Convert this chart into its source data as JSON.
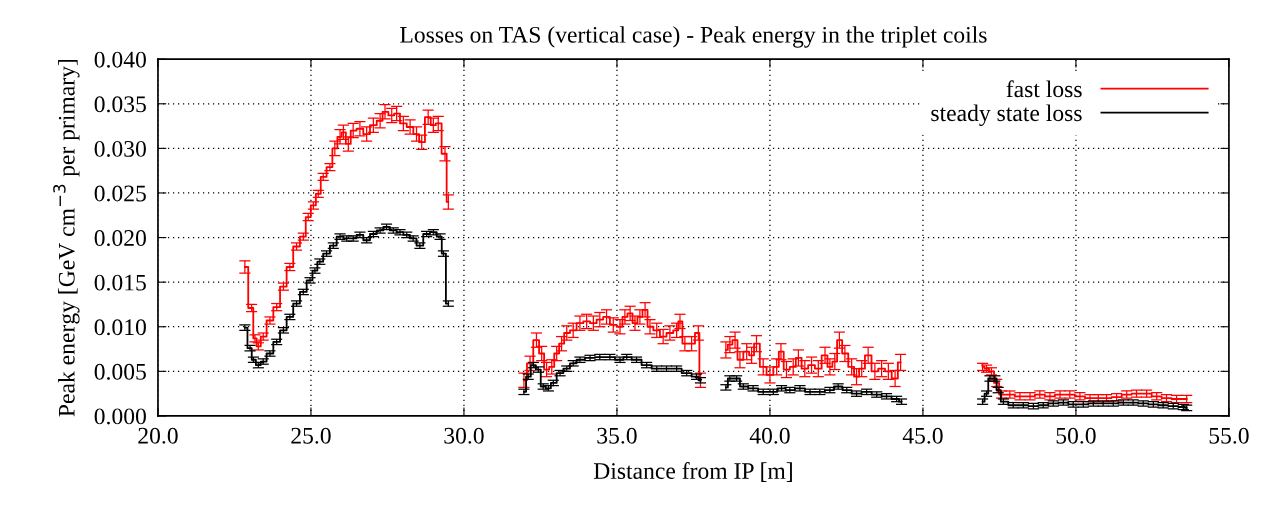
{
  "chart_data": {
    "type": "step",
    "title": "Losses on TAS (vertical case) - Peak energy in the triplet coils",
    "xlabel": "Distance from IP [m]",
    "ylabel": "Peak energy [GeV cm$^{−3}$ per primary]",
    "xlim": [
      20,
      55
    ],
    "ylim": [
      0,
      0.04
    ],
    "xticks": [
      {
        "value": 20,
        "label": "20.0"
      },
      {
        "value": 25,
        "label": "25.0"
      },
      {
        "value": 30,
        "label": "30.0"
      },
      {
        "value": 35,
        "label": "35.0"
      },
      {
        "value": 40,
        "label": "40.0"
      },
      {
        "value": 45,
        "label": "45.0"
      },
      {
        "value": 50,
        "label": "50.0"
      },
      {
        "value": 55,
        "label": "55.0"
      }
    ],
    "yticks": [
      {
        "value": 0,
        "label": "0.000"
      },
      {
        "value": 0.005,
        "label": "0.005"
      },
      {
        "value": 0.01,
        "label": "0.010"
      },
      {
        "value": 0.015,
        "label": "0.015"
      },
      {
        "value": 0.02,
        "label": "0.020"
      },
      {
        "value": 0.025,
        "label": "0.025"
      },
      {
        "value": 0.03,
        "label": "0.030"
      },
      {
        "value": 0.035,
        "label": "0.035"
      },
      {
        "value": 0.04,
        "label": "0.040"
      }
    ],
    "grid": true,
    "legend": "top right",
    "line_style": "solid",
    "series": [
      {
        "name": "fast loss",
        "color": "#ff0000",
        "x": [
          22.84,
          23.06,
          23.17,
          23.28,
          23.44,
          23.66,
          23.88,
          24.1,
          24.31,
          24.53,
          24.75,
          24.91,
          25.08,
          25.24,
          25.4,
          25.62,
          25.78,
          25.95,
          26.06,
          26.22,
          26.38,
          26.6,
          26.82,
          27.04,
          27.26,
          27.42,
          27.64,
          27.8,
          28.02,
          28.24,
          28.45,
          28.62,
          28.83,
          29.0,
          29.16,
          29.38,
          29.49,
          30.7,
          31.96,
          32.16,
          32.37,
          32.54,
          32.7,
          32.87,
          33.03,
          33.19,
          33.36,
          33.57,
          33.79,
          34.01,
          34.23,
          34.44,
          34.66,
          34.88,
          35.1,
          35.26,
          35.43,
          35.59,
          35.75,
          35.92,
          36.08,
          36.3,
          36.51,
          36.73,
          36.95,
          37.06,
          37.22,
          37.44,
          37.66,
          37.73,
          38.1,
          38.56,
          38.69,
          38.86,
          39.02,
          39.24,
          39.4,
          39.56,
          39.78,
          40.0,
          40.22,
          40.36,
          40.54,
          40.76,
          40.93,
          41.14,
          41.36,
          41.58,
          41.8,
          41.96,
          42.12,
          42.27,
          42.45,
          42.67,
          42.83,
          43.0,
          43.21,
          43.43,
          43.65,
          43.87,
          44.09,
          44.27,
          45.5,
          46.95,
          47.08,
          47.24,
          47.41,
          47.57,
          47.84,
          48.17,
          48.5,
          48.82,
          49.15,
          49.48,
          49.8,
          50.13,
          50.46,
          50.73,
          51.0,
          51.33,
          51.66,
          51.98,
          52.31,
          52.64,
          52.96,
          53.29,
          53.62
        ],
        "values": [
          0.0167,
          0.0121,
          0.0087,
          0.0078,
          0.0089,
          0.0107,
          0.0122,
          0.0145,
          0.0167,
          0.019,
          0.0201,
          0.0223,
          0.0236,
          0.0249,
          0.0268,
          0.0279,
          0.03,
          0.0313,
          0.0318,
          0.0305,
          0.032,
          0.0322,
          0.0316,
          0.0326,
          0.0331,
          0.0341,
          0.0337,
          0.0339,
          0.0328,
          0.0324,
          0.0316,
          0.0307,
          0.0335,
          0.0326,
          0.0328,
          0.0294,
          0.024,
          null,
          0.004,
          0.0059,
          0.0085,
          0.007,
          0.0052,
          0.0055,
          0.007,
          0.0081,
          0.0093,
          0.0096,
          0.0104,
          0.0106,
          0.0104,
          0.0108,
          0.0111,
          0.0102,
          0.01,
          0.0111,
          0.0115,
          0.0104,
          0.0111,
          0.0119,
          0.01,
          0.0096,
          0.0089,
          0.0093,
          0.0096,
          0.0106,
          0.0081,
          0.0081,
          0.0093,
          0.004,
          null,
          0.0074,
          0.008,
          0.0085,
          0.0063,
          0.0072,
          0.0068,
          0.0081,
          0.0055,
          0.0046,
          0.0055,
          0.0072,
          0.0052,
          0.0055,
          0.0065,
          0.0053,
          0.0057,
          0.0053,
          0.0068,
          0.0055,
          0.0061,
          0.0085,
          0.007,
          0.0055,
          0.0044,
          0.0053,
          0.0068,
          0.005,
          0.0053,
          0.005,
          0.0042,
          0.006,
          null,
          0.0055,
          0.0053,
          0.005,
          0.0037,
          0.0024,
          0.0024,
          0.0022,
          0.0022,
          0.0024,
          0.0022,
          0.0024,
          0.0024,
          0.0022,
          0.002,
          0.002,
          0.002,
          0.0021,
          0.0024,
          0.0025,
          0.0025,
          0.0022,
          0.002,
          0.0019,
          0.0019
        ],
        "errors": [
          0.0007,
          0.0004,
          0.0004,
          0.0004,
          0.0004,
          0.0004,
          0.0004,
          0.0004,
          0.0004,
          0.0004,
          0.0004,
          0.0004,
          0.0004,
          0.0004,
          0.0004,
          0.0004,
          0.0008,
          0.0008,
          0.0008,
          0.0008,
          0.0008,
          0.0008,
          0.0008,
          0.0008,
          0.0008,
          0.0008,
          0.0008,
          0.0008,
          0.0008,
          0.0008,
          0.0008,
          0.0008,
          0.0008,
          0.0008,
          0.0008,
          0.0008,
          0.0008,
          null,
          0.0008,
          0.0008,
          0.0008,
          0.0008,
          0.0008,
          0.0008,
          0.0008,
          0.0008,
          0.0008,
          0.0008,
          0.0008,
          0.0008,
          0.0008,
          0.0008,
          0.0008,
          0.0008,
          0.0008,
          0.0008,
          0.0008,
          0.0008,
          0.0008,
          0.0008,
          0.0008,
          0.0008,
          0.0008,
          0.0008,
          0.0008,
          0.0008,
          0.0008,
          0.0008,
          0.0008,
          0.0008,
          null,
          0.0009,
          0.0009,
          0.0009,
          0.0009,
          0.0009,
          0.0009,
          0.0009,
          0.0009,
          0.0009,
          0.0009,
          0.0009,
          0.0009,
          0.0009,
          0.0009,
          0.0009,
          0.0009,
          0.0009,
          0.0009,
          0.0009,
          0.0009,
          0.0009,
          0.0009,
          0.0009,
          0.0009,
          0.0009,
          0.0009,
          0.0009,
          0.0009,
          0.0009,
          0.0009,
          0.0009,
          null,
          0.0004,
          0.0004,
          0.0004,
          0.0004,
          0.0004,
          0.0004,
          0.0004,
          0.0004,
          0.0004,
          0.0004,
          0.0004,
          0.0004,
          0.0004,
          0.0004,
          0.0004,
          0.0004,
          0.0004,
          0.0004,
          0.0004,
          0.0004,
          0.0004,
          0.0004,
          0.0004,
          0.0004
        ]
      },
      {
        "name": "steady state loss",
        "color": "#000000",
        "x": [
          22.84,
          23.01,
          23.12,
          23.28,
          23.44,
          23.66,
          23.88,
          24.1,
          24.31,
          24.53,
          24.75,
          24.97,
          25.13,
          25.29,
          25.51,
          25.73,
          25.95,
          26.17,
          26.38,
          26.6,
          26.82,
          27.04,
          27.26,
          27.47,
          27.69,
          27.91,
          28.13,
          28.34,
          28.56,
          28.78,
          29.0,
          29.22,
          29.33,
          29.49,
          30.7,
          31.96,
          32.1,
          32.27,
          32.43,
          32.59,
          32.76,
          32.92,
          33.14,
          33.36,
          33.57,
          33.79,
          34.12,
          34.44,
          34.77,
          35.1,
          35.32,
          35.64,
          35.97,
          36.3,
          36.62,
          36.95,
          37.28,
          37.6,
          37.73,
          38.1,
          38.56,
          38.69,
          38.91,
          39.13,
          39.45,
          39.78,
          40.11,
          40.38,
          40.65,
          40.98,
          41.31,
          41.63,
          41.96,
          42.23,
          42.51,
          42.83,
          43.16,
          43.49,
          43.81,
          44.14,
          44.3,
          45.5,
          46.95,
          47.08,
          47.19,
          47.35,
          47.46,
          47.63,
          47.95,
          48.28,
          48.61,
          48.93,
          49.26,
          49.59,
          49.91,
          50.24,
          50.57,
          50.89,
          51.22,
          51.55,
          51.87,
          52.2,
          52.53,
          52.85,
          53.18,
          53.51,
          53.62
        ],
        "values": [
          0.0099,
          0.0076,
          0.0063,
          0.0057,
          0.0061,
          0.007,
          0.0083,
          0.0096,
          0.0111,
          0.0126,
          0.0139,
          0.0152,
          0.0163,
          0.0173,
          0.0182,
          0.0191,
          0.0201,
          0.0199,
          0.0199,
          0.0203,
          0.0197,
          0.0204,
          0.0208,
          0.0212,
          0.0208,
          0.0206,
          0.0203,
          0.0199,
          0.0191,
          0.0204,
          0.0206,
          0.0201,
          0.0182,
          0.0126,
          null,
          0.0027,
          0.0044,
          0.0057,
          0.0052,
          0.0033,
          0.0031,
          0.0037,
          0.0048,
          0.0053,
          0.0059,
          0.0063,
          0.0065,
          0.0066,
          0.0066,
          0.0063,
          0.0066,
          0.0063,
          0.0057,
          0.0053,
          0.0053,
          0.0053,
          0.0048,
          0.0044,
          0.004,
          null,
          0.0032,
          0.0042,
          0.0042,
          0.0033,
          0.0031,
          0.0027,
          0.0027,
          0.0031,
          0.0029,
          0.0031,
          0.0027,
          0.0027,
          0.0029,
          0.0033,
          0.0029,
          0.0025,
          0.0027,
          0.0024,
          0.0022,
          0.0019,
          0.0016,
          null,
          0.0016,
          0.0025,
          0.0042,
          0.0042,
          0.0029,
          0.0016,
          0.0012,
          0.0012,
          0.0011,
          0.0012,
          0.0014,
          0.0015,
          0.0013,
          0.0013,
          0.0014,
          0.0014,
          0.0014,
          0.0015,
          0.0015,
          0.0014,
          0.0013,
          0.0012,
          0.0011,
          0.001,
          0.0009
        ],
        "errors": [
          0.0003,
          0.0003,
          0.0003,
          0.0003,
          0.0003,
          0.0003,
          0.0003,
          0.0003,
          0.0003,
          0.0003,
          0.0003,
          0.0003,
          0.0003,
          0.0003,
          0.0003,
          0.0003,
          0.0003,
          0.0003,
          0.0003,
          0.0003,
          0.0003,
          0.0003,
          0.0003,
          0.0003,
          0.0003,
          0.0003,
          0.0003,
          0.0003,
          0.0003,
          0.0003,
          0.0003,
          0.0003,
          0.0003,
          0.0003,
          null,
          0.0003,
          0.0003,
          0.0003,
          0.0003,
          0.0003,
          0.0003,
          0.0003,
          0.0003,
          0.0003,
          0.0003,
          0.0003,
          0.0003,
          0.0003,
          0.0003,
          0.0003,
          0.0003,
          0.0003,
          0.0003,
          0.0003,
          0.0003,
          0.0003,
          0.0003,
          0.0003,
          0.0003,
          null,
          0.0003,
          0.0003,
          0.0003,
          0.0003,
          0.0003,
          0.0003,
          0.0003,
          0.0003,
          0.0003,
          0.0003,
          0.0003,
          0.0003,
          0.0003,
          0.0003,
          0.0003,
          0.0003,
          0.0003,
          0.0003,
          0.0003,
          0.0003,
          0.0003,
          null,
          0.0003,
          0.0003,
          0.0003,
          0.0003,
          0.0003,
          0.0003,
          0.0003,
          0.0003,
          0.0003,
          0.0003,
          0.0003,
          0.0003,
          0.0003,
          0.0003,
          0.0003,
          0.0003,
          0.0003,
          0.0003,
          0.0003,
          0.0003,
          0.0003,
          0.0003,
          0.0003,
          0.0003,
          0.0003
        ]
      }
    ]
  }
}
